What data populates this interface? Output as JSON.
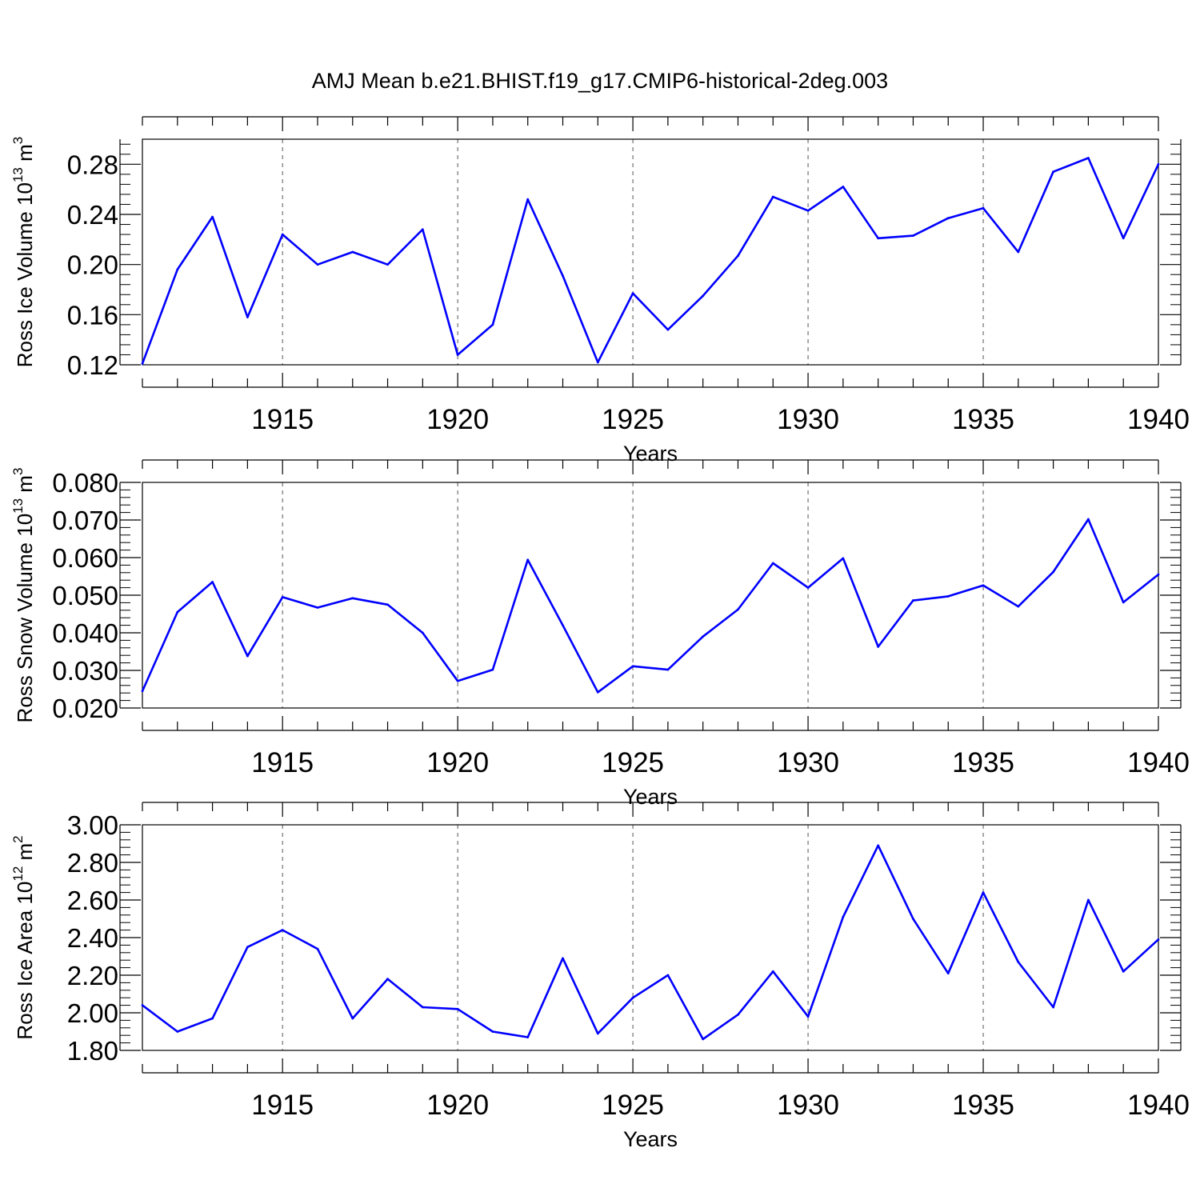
{
  "title": "AMJ Mean b.e21.BHIST.f19_g17.CMIP6-historical-2deg.003",
  "colors": {
    "line": "#0000ff",
    "axis": "#000000",
    "grid": "#555555"
  },
  "chart_data": [
    {
      "type": "line",
      "ylabel": {
        "main": "Ross Ice Volume 10",
        "exp": "13",
        "unit": " m",
        "unit_exp": "3"
      },
      "xlabel": "Years",
      "xlim": [
        1911,
        1940
      ],
      "ylim": [
        0.12,
        0.3
      ],
      "yticks": [
        0.12,
        0.16,
        0.2,
        0.24,
        0.28
      ],
      "ytick_labels": [
        "0.12",
        "0.16",
        "0.20",
        "0.24",
        "0.28"
      ],
      "xticks": [
        1915,
        1920,
        1925,
        1930,
        1935,
        1940
      ],
      "xtick_labels": [
        "1915",
        "1920",
        "1925",
        "1930",
        "1935",
        "1940"
      ],
      "grid_x": true,
      "series": [
        {
          "name": "Ross Ice Volume",
          "x": [
            1911,
            1912,
            1913,
            1914,
            1915,
            1916,
            1917,
            1918,
            1919,
            1920,
            1921,
            1922,
            1923,
            1924,
            1925,
            1926,
            1927,
            1928,
            1929,
            1930,
            1931,
            1932,
            1933,
            1934,
            1935,
            1936,
            1937,
            1938,
            1939,
            1940
          ],
          "values": [
            0.121,
            0.196,
            0.238,
            0.158,
            0.224,
            0.2,
            0.21,
            0.2,
            0.228,
            0.128,
            0.152,
            0.252,
            0.191,
            0.122,
            0.177,
            0.148,
            0.175,
            0.207,
            0.254,
            0.243,
            0.262,
            0.221,
            0.223,
            0.237,
            0.245,
            0.21,
            0.274,
            0.285,
            0.221,
            0.28
          ]
        }
      ]
    },
    {
      "type": "line",
      "ylabel": {
        "main": "Ross Snow Volume 10",
        "exp": "13",
        "unit": " m",
        "unit_exp": "3"
      },
      "xlabel": "Years",
      "xlim": [
        1911,
        1940
      ],
      "ylim": [
        0.02,
        0.08
      ],
      "yticks": [
        0.02,
        0.03,
        0.04,
        0.05,
        0.06,
        0.07,
        0.08
      ],
      "ytick_labels": [
        "0.020",
        "0.030",
        "0.040",
        "0.050",
        "0.060",
        "0.070",
        "0.080"
      ],
      "xticks": [
        1915,
        1920,
        1925,
        1930,
        1935,
        1940
      ],
      "xtick_labels": [
        "1915",
        "1920",
        "1925",
        "1930",
        "1935",
        "1940"
      ],
      "grid_x": true,
      "series": [
        {
          "name": "Ross Snow Volume",
          "x": [
            1911,
            1912,
            1913,
            1914,
            1915,
            1916,
            1917,
            1918,
            1919,
            1920,
            1921,
            1922,
            1923,
            1924,
            1925,
            1926,
            1927,
            1928,
            1929,
            1930,
            1931,
            1932,
            1933,
            1934,
            1935,
            1936,
            1937,
            1938,
            1939,
            1940
          ],
          "values": [
            0.0245,
            0.0455,
            0.0535,
            0.0338,
            0.0495,
            0.0467,
            0.0492,
            0.0475,
            0.04,
            0.0272,
            0.0302,
            0.0594,
            0.042,
            0.0242,
            0.0311,
            0.0302,
            0.039,
            0.0462,
            0.0585,
            0.052,
            0.0598,
            0.0363,
            0.0486,
            0.0497,
            0.0526,
            0.047,
            0.0562,
            0.0702,
            0.0481,
            0.0555
          ]
        }
      ]
    },
    {
      "type": "line",
      "ylabel": {
        "main": "Ross Ice Area 10",
        "exp": "12",
        "unit": " m",
        "unit_exp": "2"
      },
      "xlabel": "Years",
      "xlim": [
        1911,
        1940
      ],
      "ylim": [
        1.8,
        3.0
      ],
      "yticks": [
        1.8,
        2.0,
        2.2,
        2.4,
        2.6,
        2.8,
        3.0
      ],
      "ytick_labels": [
        "1.80",
        "2.00",
        "2.20",
        "2.40",
        "2.60",
        "2.80",
        "3.00"
      ],
      "xticks": [
        1915,
        1920,
        1925,
        1930,
        1935,
        1940
      ],
      "xtick_labels": [
        "1915",
        "1920",
        "1925",
        "1930",
        "1935",
        "1940"
      ],
      "grid_x": true,
      "series": [
        {
          "name": "Ross Ice Area",
          "x": [
            1911,
            1912,
            1913,
            1914,
            1915,
            1916,
            1917,
            1918,
            1919,
            1920,
            1921,
            1922,
            1923,
            1924,
            1925,
            1926,
            1927,
            1928,
            1929,
            1930,
            1931,
            1932,
            1933,
            1934,
            1935,
            1936,
            1937,
            1938,
            1939,
            1940
          ],
          "values": [
            2.04,
            1.9,
            1.97,
            2.35,
            2.44,
            2.34,
            1.97,
            2.18,
            2.03,
            2.02,
            1.9,
            1.87,
            2.29,
            1.89,
            2.08,
            2.2,
            1.86,
            1.99,
            2.22,
            1.98,
            2.51,
            2.89,
            2.5,
            2.21,
            2.64,
            2.27,
            2.03,
            2.6,
            2.22,
            2.39
          ]
        }
      ]
    }
  ]
}
